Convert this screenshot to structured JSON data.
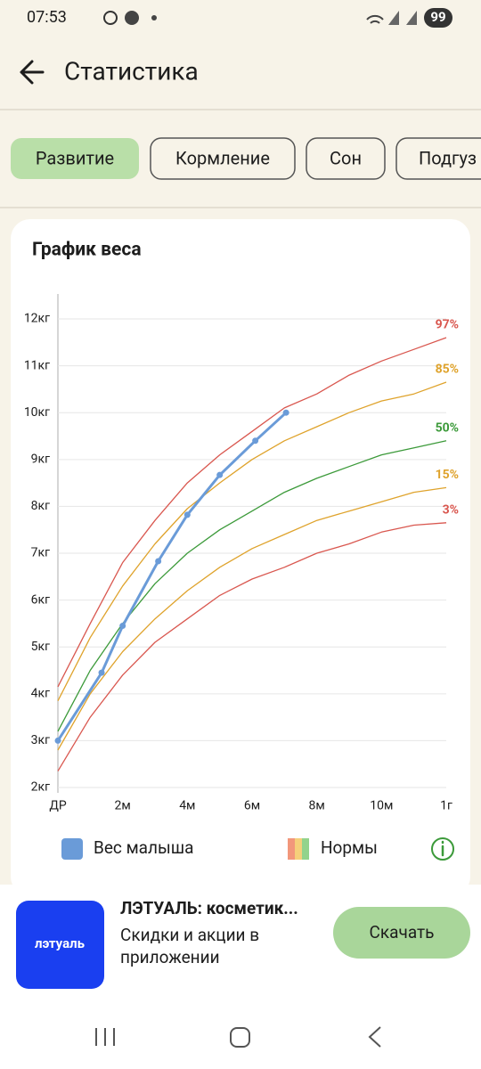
{
  "status_bar": {
    "time": "07:53",
    "battery": "99"
  },
  "header": {
    "title": "Статистика"
  },
  "tabs": [
    "Развитие",
    "Кормление",
    "Сон",
    "Подгуз"
  ],
  "chart_data": {
    "type": "line",
    "title": "График веса",
    "xlim": [
      0,
      12
    ],
    "ylim": [
      1.9,
      12.5
    ],
    "xticks": [
      {
        "value": 0,
        "label": "ДР"
      },
      {
        "value": 2,
        "label": "2м"
      },
      {
        "value": 4,
        "label": "4м"
      },
      {
        "value": 6,
        "label": "6м"
      },
      {
        "value": 8,
        "label": "8м"
      },
      {
        "value": 10,
        "label": "10м"
      },
      {
        "value": 12,
        "label": "1г"
      }
    ],
    "yticks": [
      {
        "value": 2,
        "label": "2кг"
      },
      {
        "value": 3,
        "label": "3кг"
      },
      {
        "value": 4,
        "label": "4кг"
      },
      {
        "value": 5,
        "label": "5кг"
      },
      {
        "value": 6,
        "label": "6кг"
      },
      {
        "value": 7,
        "label": "7кг"
      },
      {
        "value": 8,
        "label": "8кг"
      },
      {
        "value": 9,
        "label": "9кг"
      },
      {
        "value": 10,
        "label": "10кг"
      },
      {
        "value": 11,
        "label": "11кг"
      },
      {
        "value": 12,
        "label": "12кг"
      }
    ],
    "grid": true,
    "series": [
      {
        "name": "97%",
        "color": "#d9574f",
        "x": [
          0,
          1,
          2,
          3,
          4,
          5,
          6,
          7,
          8,
          9,
          10,
          11,
          12
        ],
        "values": [
          4.15,
          5.5,
          6.8,
          7.7,
          8.5,
          9.1,
          9.6,
          10.1,
          10.4,
          10.8,
          11.1,
          11.35,
          11.6
        ]
      },
      {
        "name": "85%",
        "color": "#dfa32c",
        "x": [
          0,
          1,
          2,
          3,
          4,
          5,
          6,
          7,
          8,
          9,
          10,
          11,
          12
        ],
        "values": [
          3.85,
          5.2,
          6.3,
          7.2,
          7.95,
          8.5,
          9.0,
          9.4,
          9.7,
          10.0,
          10.25,
          10.4,
          10.65
        ]
      },
      {
        "name": "50%",
        "color": "#3c9a3a",
        "x": [
          0,
          1,
          2,
          3,
          4,
          5,
          6,
          7,
          8,
          9,
          10,
          11,
          12
        ],
        "values": [
          3.2,
          4.5,
          5.5,
          6.35,
          7.0,
          7.5,
          7.9,
          8.3,
          8.6,
          8.85,
          9.1,
          9.25,
          9.4
        ]
      },
      {
        "name": "15%",
        "color": "#dfa32c",
        "x": [
          0,
          1,
          2,
          3,
          4,
          5,
          6,
          7,
          8,
          9,
          10,
          11,
          12
        ],
        "values": [
          2.8,
          4.0,
          4.9,
          5.6,
          6.2,
          6.7,
          7.1,
          7.4,
          7.7,
          7.9,
          8.1,
          8.3,
          8.4
        ]
      },
      {
        "name": "3%",
        "color": "#d9574f",
        "x": [
          0,
          1,
          2,
          3,
          4,
          5,
          6,
          7,
          8,
          9,
          10,
          11,
          12
        ],
        "values": [
          2.35,
          3.5,
          4.4,
          5.1,
          5.6,
          6.1,
          6.45,
          6.7,
          7.0,
          7.2,
          7.45,
          7.6,
          7.65
        ]
      },
      {
        "name": "Вес малыша",
        "color": "#6a9bd8",
        "x": [
          0,
          1.35,
          2,
          3.1,
          4,
          5,
          6.1,
          7.05
        ],
        "values": [
          3.0,
          4.45,
          5.45,
          6.83,
          7.82,
          8.67,
          9.4,
          10.0
        ]
      }
    ],
    "legend_norms": "Нормы"
  },
  "ad": {
    "logo": "лэтуаль",
    "title": "ЛЭТУАЛЬ: косметик...",
    "subtitle_lines": [
      "Скидки и акции в",
      "приложении"
    ],
    "button": "Скачать"
  }
}
